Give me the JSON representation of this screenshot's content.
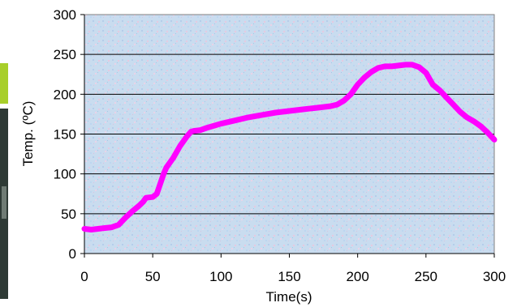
{
  "chart_data": {
    "type": "line",
    "title": "",
    "xlabel": "Time(s)",
    "ylabel": "Temp. (ºC)",
    "xlim": [
      0,
      300
    ],
    "ylim": [
      0,
      300
    ],
    "x_ticks": [
      "0",
      "50",
      "100",
      "150",
      "200",
      "250",
      "300"
    ],
    "y_ticks": [
      "0",
      "50",
      "100",
      "150",
      "200",
      "250",
      "300"
    ],
    "grid": "horizontal",
    "legend": "none",
    "plot_background": "speckled light blue / pink texture",
    "series": [
      {
        "color": "#ff00ff",
        "points": [
          [
            0,
            31
          ],
          [
            5,
            30
          ],
          [
            10,
            31
          ],
          [
            15,
            32
          ],
          [
            20,
            33
          ],
          [
            25,
            36
          ],
          [
            30,
            45
          ],
          [
            35,
            53
          ],
          [
            40,
            60
          ],
          [
            43,
            65
          ],
          [
            45,
            70
          ],
          [
            50,
            71
          ],
          [
            53,
            75
          ],
          [
            55,
            85
          ],
          [
            58,
            100
          ],
          [
            60,
            108
          ],
          [
            65,
            120
          ],
          [
            70,
            135
          ],
          [
            75,
            147
          ],
          [
            78,
            153
          ],
          [
            80,
            154
          ],
          [
            85,
            155
          ],
          [
            90,
            158
          ],
          [
            100,
            163
          ],
          [
            110,
            167
          ],
          [
            120,
            171
          ],
          [
            130,
            174
          ],
          [
            140,
            177
          ],
          [
            150,
            179
          ],
          [
            160,
            181
          ],
          [
            170,
            183
          ],
          [
            180,
            185
          ],
          [
            185,
            187
          ],
          [
            190,
            192
          ],
          [
            195,
            200
          ],
          [
            200,
            212
          ],
          [
            205,
            221
          ],
          [
            210,
            228
          ],
          [
            215,
            233
          ],
          [
            220,
            235
          ],
          [
            225,
            235
          ],
          [
            230,
            236
          ],
          [
            235,
            237
          ],
          [
            240,
            237
          ],
          [
            245,
            234
          ],
          [
            250,
            227
          ],
          [
            255,
            212
          ],
          [
            260,
            205
          ],
          [
            265,
            196
          ],
          [
            270,
            187
          ],
          [
            275,
            178
          ],
          [
            280,
            171
          ],
          [
            285,
            166
          ],
          [
            290,
            160
          ],
          [
            295,
            152
          ],
          [
            300,
            143
          ]
        ]
      }
    ]
  },
  "left_photo": {
    "colors": {
      "accent_bar": "#a8cf2a",
      "photo_dark": "#2e3a35"
    }
  }
}
